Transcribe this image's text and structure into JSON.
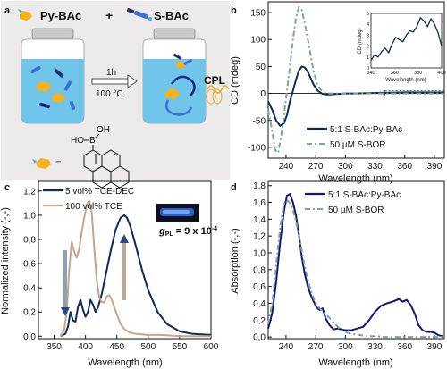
{
  "panel_labels": [
    "a",
    "b",
    "c",
    "d"
  ],
  "scheme": {
    "py_label": "Py-BAc",
    "s_label": "S-BAc",
    "plus": "+",
    "arrow_top": "1h",
    "arrow_bottom": "100 °C",
    "cpl": "CPL",
    "ho": "HO",
    "b": "B",
    "oh": "OH",
    "equals": "="
  },
  "chart_data": [
    {
      "panel": "b",
      "type": "line",
      "xlabel": "Wavelength (nm)",
      "ylabel": "CD (mdeg)",
      "xlim": [
        222,
        400
      ],
      "ylim": [
        -120,
        170
      ],
      "xticks": [
        "240",
        "270",
        "300",
        "330",
        "360",
        "390"
      ],
      "yticks": [
        "-100",
        "-50",
        "0",
        "50",
        "100",
        "150"
      ],
      "legend": "bottom-right",
      "series": [
        {
          "name": "5:1 S-BAc:Py-BAc",
          "color": "#0e2a5c",
          "dash": "",
          "x": [
            222,
            226,
            230,
            234,
            238,
            241,
            244,
            247,
            250,
            253,
            256,
            259,
            262,
            265,
            268,
            272,
            276,
            280,
            285,
            290,
            300,
            310,
            330,
            360,
            400
          ],
          "y": [
            -15,
            -30,
            -50,
            -60,
            -55,
            -40,
            -15,
            5,
            25,
            42,
            50,
            48,
            40,
            28,
            16,
            5,
            0,
            -2,
            -2,
            -1,
            0,
            0,
            1,
            2,
            2
          ]
        },
        {
          "name": "50 µM S-BOR",
          "color": "#7aa892",
          "dash": "6,3,2,3",
          "x": [
            222,
            226,
            229,
            232,
            235,
            238,
            241,
            244,
            247,
            250,
            253,
            256,
            259,
            262,
            265,
            268,
            272,
            276,
            280,
            285,
            290,
            300,
            330,
            360,
            400
          ],
          "y": [
            -30,
            -70,
            -105,
            -110,
            -80,
            -40,
            5,
            50,
            100,
            140,
            160,
            155,
            130,
            100,
            70,
            40,
            15,
            5,
            0,
            0,
            0,
            0,
            0,
            0,
            0
          ]
        }
      ],
      "inset": {
        "xlim": [
          340,
          400
        ],
        "ylim": [
          0,
          5
        ],
        "xticks": [
          "340",
          "360",
          "380",
          "400"
        ],
        "yticks": [
          "0",
          "1",
          "2",
          "3",
          "4",
          "5"
        ],
        "xlabel": "Wavelength (nm)",
        "ylabel": "CD (mdeg)",
        "x": [
          340,
          343,
          346,
          349,
          352,
          355,
          358,
          361,
          364,
          367,
          370,
          373,
          376,
          379,
          382,
          385,
          388,
          391,
          394,
          397,
          400
        ],
        "y": [
          0.7,
          1.2,
          1.0,
          1.5,
          1.8,
          1.4,
          2.2,
          2.8,
          2.6,
          2.4,
          3.0,
          3.4,
          3.3,
          3.8,
          4.6,
          4.3,
          3.8,
          4.5,
          4.0,
          3.2,
          2.0
        ]
      }
    },
    {
      "panel": "c",
      "type": "line",
      "xlabel": "Wavelength (nm)",
      "ylabel": "Normalized intensity (-,-)",
      "xlim": [
        325,
        600
      ],
      "ylim": [
        -0.02,
        1.28
      ],
      "xticks": [
        "350",
        "400",
        "450",
        "500",
        "550",
        "600"
      ],
      "yticks": [
        "0,0",
        "0,2",
        "0,4",
        "0,6",
        "0,8",
        "1,0",
        "1,2"
      ],
      "legend": "top-left",
      "annotation_g": "g",
      "annotation_sub": "PL",
      "annotation_val": " = 9 x 10",
      "annotation_exp": "-4",
      "series": [
        {
          "name": "5 vol% TCE-DEC",
          "color": "#0e2a5c",
          "x": [
            360,
            368,
            372,
            376,
            380,
            384,
            388,
            392,
            396,
            400,
            404,
            408,
            412,
            416,
            420,
            426,
            432,
            440,
            448,
            456,
            462,
            466,
            472,
            480,
            490,
            500,
            515,
            530,
            550,
            570,
            600
          ],
          "y": [
            0,
            0.02,
            0.08,
            0.2,
            0.13,
            0.12,
            0.24,
            0.3,
            0.22,
            0.16,
            0.2,
            0.3,
            0.26,
            0.2,
            0.24,
            0.35,
            0.5,
            0.7,
            0.88,
            0.98,
            1.0,
            0.98,
            0.9,
            0.75,
            0.55,
            0.38,
            0.2,
            0.1,
            0.04,
            0.02,
            0.01
          ]
        },
        {
          "name": "100 vol% TCE",
          "color": "#c6a58c",
          "x": [
            360,
            366,
            370,
            374,
            378,
            382,
            386,
            390,
            394,
            398,
            402,
            406,
            410,
            414,
            418,
            422,
            426,
            430,
            434,
            438,
            442,
            446,
            450,
            456,
            462,
            470,
            480,
            500,
            520,
            550,
            600
          ],
          "y": [
            0,
            0.05,
            0.2,
            0.55,
            0.78,
            0.7,
            0.65,
            0.72,
            0.86,
            0.98,
            1.08,
            1.12,
            1.02,
            0.72,
            0.46,
            0.32,
            0.28,
            0.28,
            0.33,
            0.34,
            0.3,
            0.24,
            0.18,
            0.1,
            0.06,
            0.03,
            0.02,
            0.01,
            0.01,
            0,
            0
          ]
        }
      ]
    },
    {
      "panel": "d",
      "type": "line",
      "xlabel": "Wavelength (nm)",
      "ylabel": "Absorption (-,-)",
      "xlim": [
        222,
        400
      ],
      "ylim": [
        -0.02,
        1.85
      ],
      "xticks": [
        "240",
        "270",
        "300",
        "330",
        "360",
        "390"
      ],
      "yticks": [
        "0,0",
        "0,2",
        "0,4",
        "0,6",
        "0,8",
        "1,0",
        "1,2",
        "1,4",
        "1,6",
        "1,8"
      ],
      "legend": "top-right",
      "series": [
        {
          "name": "5:1 S-BAc:Py-BAc",
          "color": "#16167a",
          "dash": "",
          "x": [
            222,
            226,
            230,
            234,
            238,
            241,
            244,
            247,
            250,
            253,
            256,
            259,
            262,
            265,
            268,
            271,
            274,
            277,
            280,
            284,
            288,
            292,
            296,
            300,
            306,
            312,
            318,
            324,
            330,
            336,
            342,
            348,
            354,
            358,
            362,
            366,
            370,
            374,
            378,
            382,
            386,
            390,
            394,
            398
          ],
          "y": [
            0.1,
            0.28,
            0.65,
            1.12,
            1.5,
            1.68,
            1.7,
            1.6,
            1.45,
            1.22,
            0.95,
            0.75,
            0.6,
            0.5,
            0.42,
            0.35,
            0.32,
            0.34,
            0.22,
            0.14,
            0.09,
            0.1,
            0.09,
            0.08,
            0.08,
            0.1,
            0.12,
            0.2,
            0.3,
            0.37,
            0.4,
            0.42,
            0.45,
            0.42,
            0.44,
            0.38,
            0.28,
            0.14,
            0.08,
            0.06,
            0.06,
            0.05,
            0.02,
            0.01
          ]
        },
        {
          "name": "50 µM S-BOR",
          "color": "#7aa892",
          "dash": "6,3,2,3",
          "x": [
            222,
            226,
            230,
            234,
            238,
            242,
            246,
            250,
            254,
            258,
            262,
            266,
            270,
            274,
            278,
            282,
            286,
            290,
            294,
            298,
            302,
            306,
            310,
            316,
            322,
            330,
            340,
            360,
            400
          ],
          "y": [
            0.15,
            0.4,
            0.85,
            1.3,
            1.58,
            1.62,
            1.55,
            1.38,
            1.15,
            0.9,
            0.68,
            0.52,
            0.4,
            0.34,
            0.3,
            0.25,
            0.2,
            0.15,
            0.1,
            0.07,
            0.05,
            0.04,
            0.03,
            0.02,
            0.01,
            0.01,
            0,
            0,
            0
          ]
        }
      ]
    }
  ]
}
